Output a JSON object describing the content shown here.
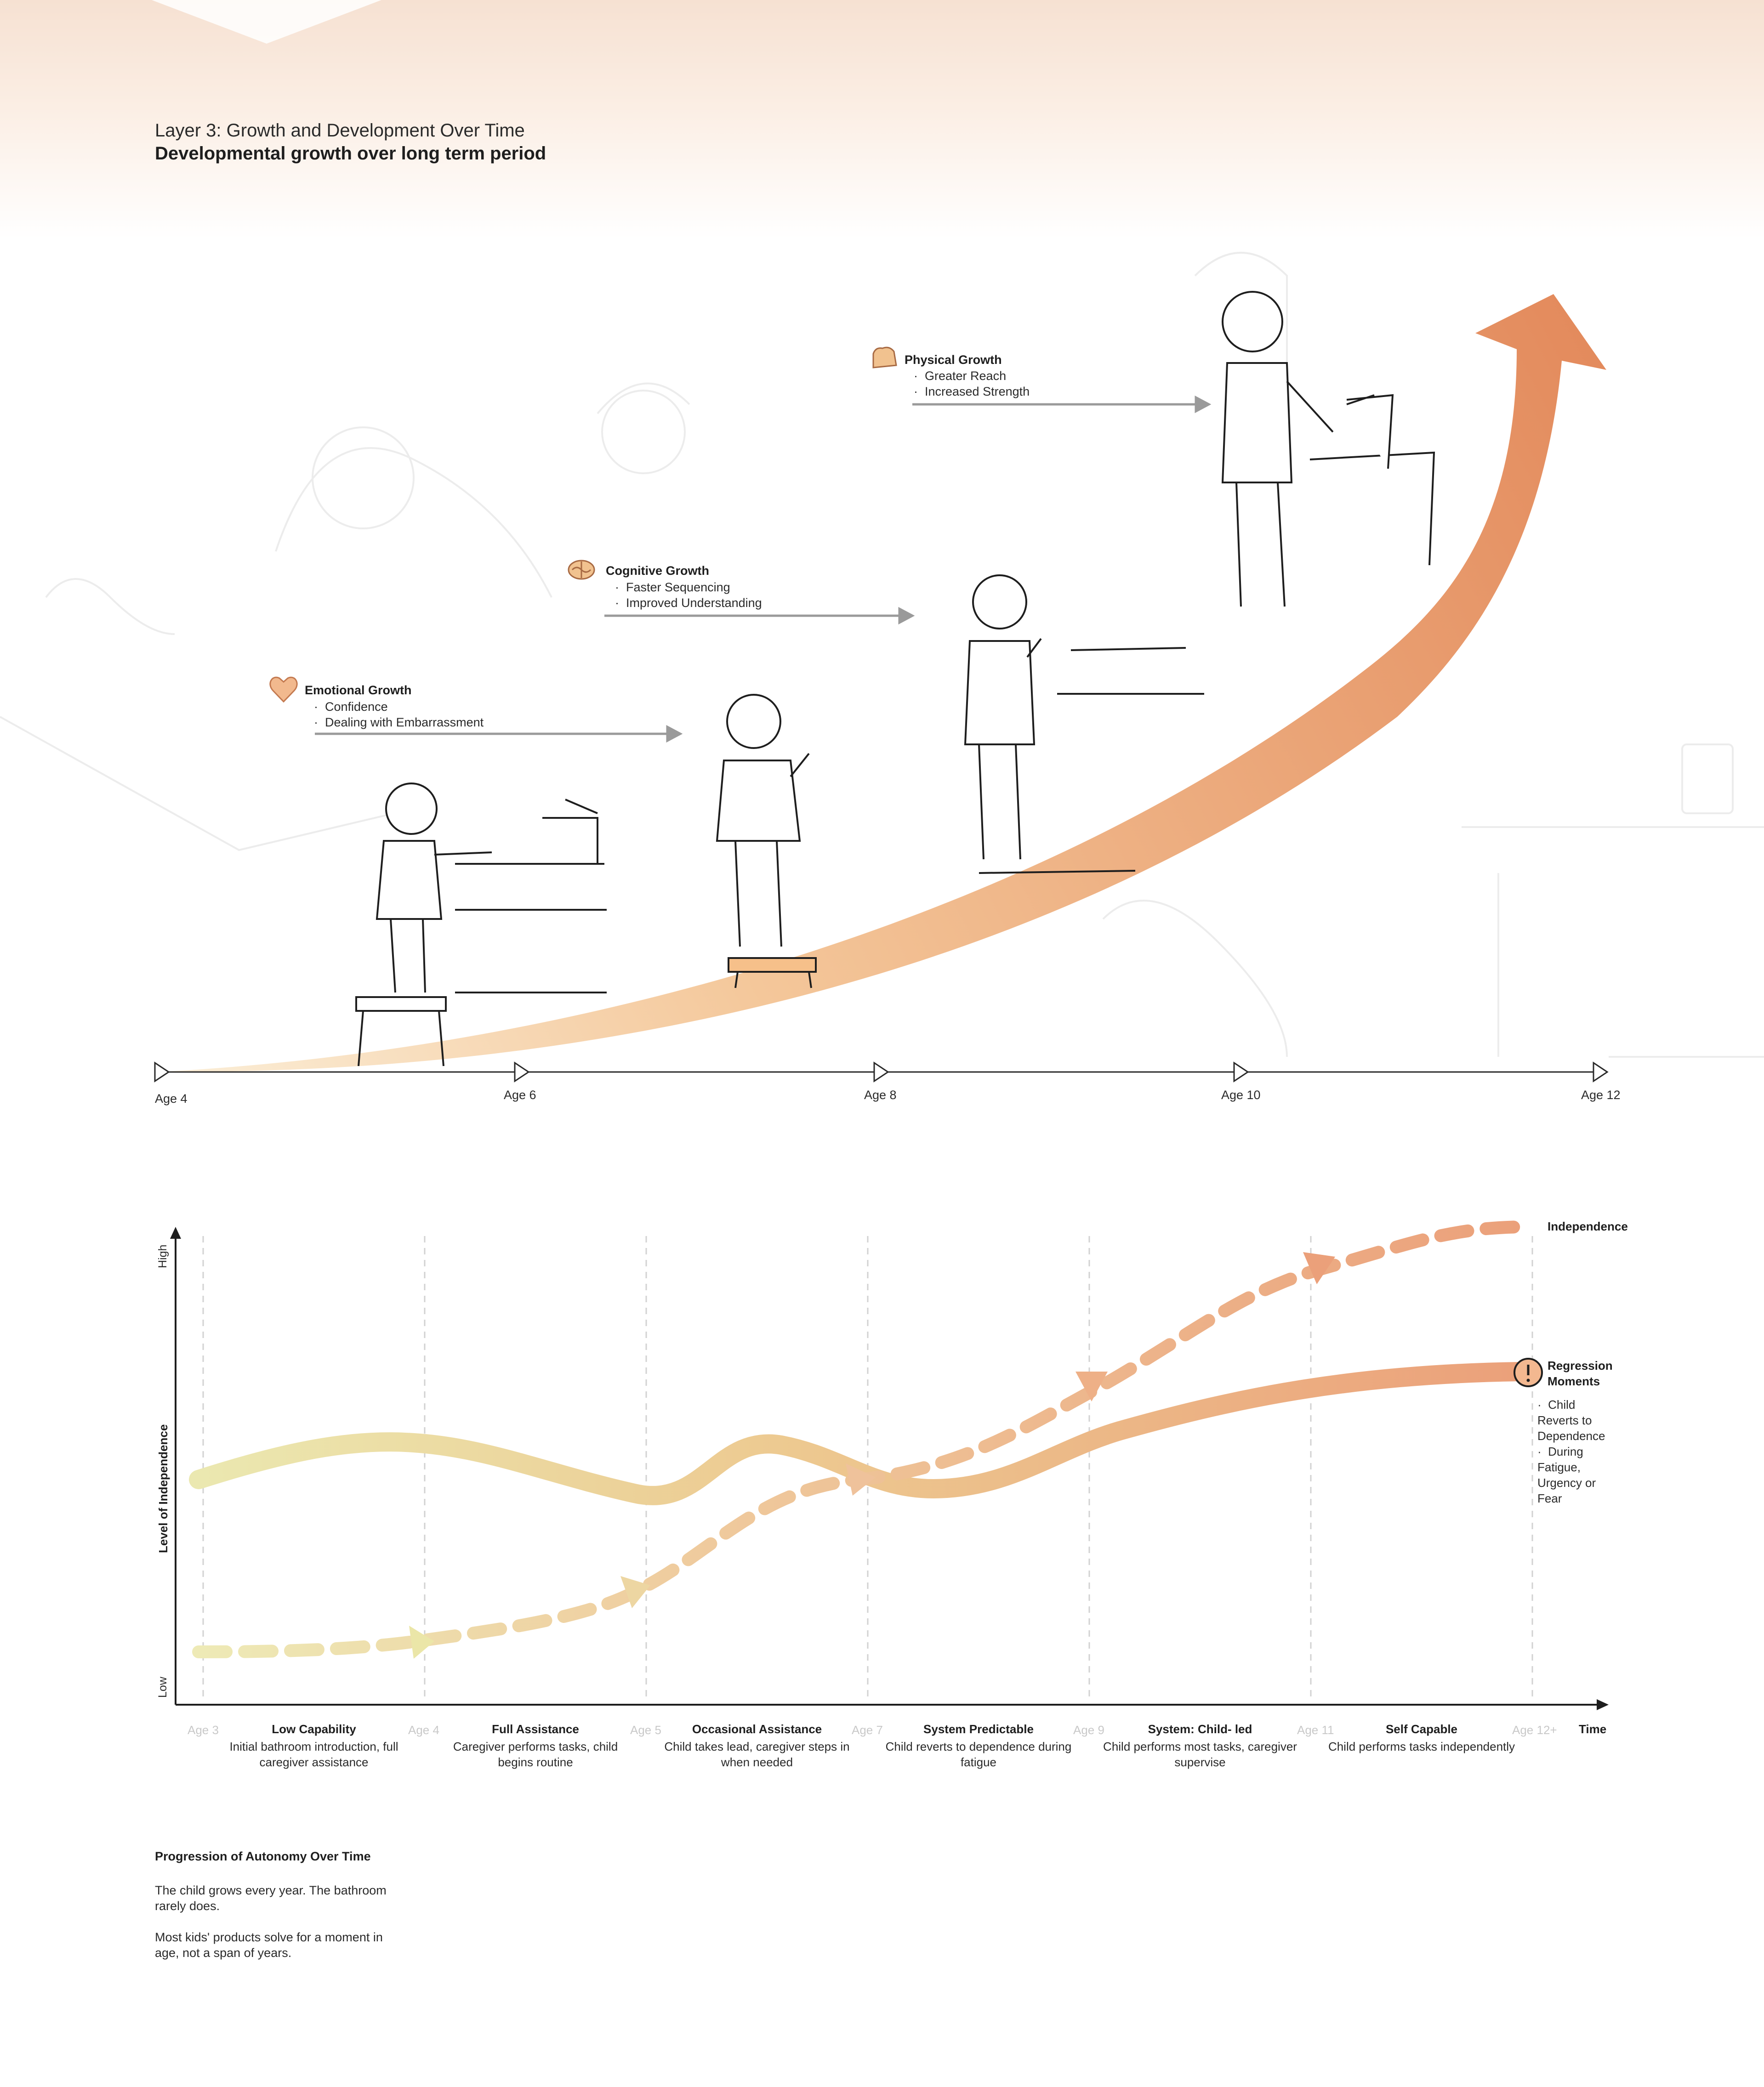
{
  "header": {
    "title": "Layer 3: Growth and Development Over Time",
    "subtitle": "Developmental growth over long term period"
  },
  "growth_diagram": {
    "callouts": [
      {
        "title": "Emotional Growth",
        "icon": "heart-icon",
        "items": [
          "Confidence",
          "Dealing with Embarrassment"
        ]
      },
      {
        "title": "Cognitive Growth",
        "icon": "brain-icon",
        "items": [
          "Faster Sequencing",
          "Improved Understanding"
        ]
      },
      {
        "title": "Physical Growth",
        "icon": "flexed-arm-icon",
        "items": [
          "Greater Reach",
          "Increased Strength"
        ]
      }
    ],
    "ages": [
      "Age 4",
      "Age 6",
      "Age 8",
      "Age 10",
      "Age 12"
    ],
    "colors": {
      "arrow_start": "#f7dcb4",
      "arrow_end": "#e38a5c"
    }
  },
  "autonomy_chart": {
    "y_label": "Level of Independence",
    "y_high": "High",
    "y_low": "Low",
    "x_label": "Time",
    "stage_ages": [
      "Age 3",
      "Age 4",
      "Age 5",
      "Age 7",
      "Age 9",
      "Age 11",
      "Age 12+"
    ],
    "stages": [
      {
        "title": "Low Capability",
        "desc": "Initial bathroom introduction, full caregiver assistance"
      },
      {
        "title": "Full Assistance",
        "desc": "Caregiver performs tasks, child begins routine"
      },
      {
        "title": "Occasional Assistance",
        "desc": "Child takes lead, caregiver steps in when needed"
      },
      {
        "title": "System Predictable",
        "desc": "Child reverts to dependence during fatigue"
      },
      {
        "title": "System: Child- led",
        "desc": "Child performs most tasks, caregiver supervise"
      },
      {
        "title": "Self Capable",
        "desc": "Child performs tasks independently"
      }
    ],
    "independence_label": "Independence",
    "regression": {
      "title": "Regression Moments",
      "icon": "exclamation-icon",
      "items": [
        "Child Reverts to Dependence",
        "During Fatigue, Urgency or Fear"
      ]
    },
    "colors": {
      "line_start": "#ebe6a8",
      "line_end": "#eba07a"
    }
  },
  "footer": {
    "title": "Progression of Autonomy Over Time",
    "paragraphs": [
      "The child grows every year. The bathroom rarely does.",
      "Most kids' products solve for a moment in age, not a span of years."
    ]
  }
}
